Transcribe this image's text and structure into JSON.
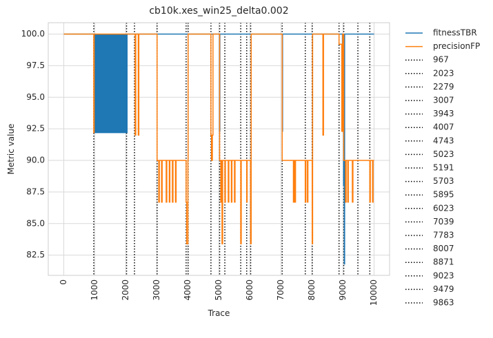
{
  "chart_data": {
    "type": "line",
    "title": "cb10k.xes_win25_delta0.002",
    "xlabel": "Trace",
    "ylabel": "Metric value",
    "xlim": [
      -500,
      10500
    ],
    "ylim": [
      80.9,
      100.9
    ],
    "xticks": [
      0,
      1000,
      2000,
      3000,
      4000,
      5000,
      6000,
      7000,
      8000,
      9000,
      10000
    ],
    "yticks": [
      82.5,
      85.0,
      87.5,
      90.0,
      92.5,
      95.0,
      97.5,
      100.0
    ],
    "grid": true,
    "legend_placement": "outside-right",
    "series": [
      {
        "name": "fitnessTBR",
        "color": "#1f77b4",
        "points": [
          [
            0,
            100
          ],
          [
            967,
            100
          ],
          [
            1000,
            100
          ],
          [
            1000,
            92.2
          ],
          [
            2040,
            92.2
          ],
          [
            2040,
            100
          ],
          [
            3000,
            100
          ],
          [
            3000,
            100
          ],
          [
            3000,
            100
          ],
          [
            4000,
            100
          ],
          [
            5000,
            100
          ],
          [
            5020,
            100
          ],
          [
            5020,
            92.3
          ],
          [
            5030,
            92.3
          ],
          [
            5030,
            100
          ],
          [
            6000,
            100
          ],
          [
            7039,
            100
          ],
          [
            7039,
            92.3
          ],
          [
            7050,
            92.3
          ],
          [
            7050,
            100
          ],
          [
            8000,
            100
          ],
          [
            8871,
            100
          ],
          [
            8871,
            100
          ],
          [
            8980,
            100
          ],
          [
            8980,
            92.3
          ],
          [
            9000,
            92.3
          ],
          [
            9000,
            99.2
          ],
          [
            9010,
            99.2
          ],
          [
            9010,
            92.3
          ],
          [
            9020,
            92.3
          ],
          [
            9020,
            88.0
          ],
          [
            9040,
            88.0
          ],
          [
            9040,
            81.8
          ],
          [
            9050,
            81.8
          ],
          [
            9050,
            100
          ],
          [
            10000,
            100
          ]
        ],
        "fill_block": {
          "x0": 1000,
          "x1": 2040,
          "y0": 92.2,
          "y1": 100
        }
      },
      {
        "name": "precisionFP",
        "color": "#ff7f0e",
        "points": [
          [
            0,
            100
          ],
          [
            967,
            100
          ],
          [
            967,
            92.2
          ],
          [
            980,
            92.2
          ],
          [
            980,
            100
          ],
          [
            2000,
            100
          ],
          [
            2000,
            100
          ],
          [
            2300,
            100
          ],
          [
            2300,
            92.0
          ],
          [
            2320,
            92.0
          ],
          [
            2320,
            100
          ],
          [
            2400,
            100
          ],
          [
            2400,
            92.0
          ],
          [
            2420,
            92.0
          ],
          [
            2420,
            100
          ],
          [
            3007,
            100
          ],
          [
            3007,
            90.0
          ],
          [
            3060,
            90.0
          ],
          [
            3060,
            86.7
          ],
          [
            3080,
            86.7
          ],
          [
            3080,
            90.0
          ],
          [
            3150,
            90.0
          ],
          [
            3150,
            86.7
          ],
          [
            3170,
            86.7
          ],
          [
            3170,
            90.0
          ],
          [
            3300,
            90.0
          ],
          [
            3300,
            86.7
          ],
          [
            3320,
            86.7
          ],
          [
            3320,
            90.0
          ],
          [
            3400,
            90.0
          ],
          [
            3400,
            86.7
          ],
          [
            3420,
            86.7
          ],
          [
            3420,
            90.0
          ],
          [
            3500,
            90.0
          ],
          [
            3500,
            86.7
          ],
          [
            3520,
            86.7
          ],
          [
            3520,
            90.0
          ],
          [
            3600,
            90.0
          ],
          [
            3600,
            86.7
          ],
          [
            3620,
            86.7
          ],
          [
            3620,
            90.0
          ],
          [
            3943,
            90.0
          ],
          [
            3943,
            86.7
          ],
          [
            3960,
            86.7
          ],
          [
            3960,
            83.4
          ],
          [
            4000,
            83.4
          ],
          [
            4000,
            90.0
          ],
          [
            4007,
            90.0
          ],
          [
            4007,
            100
          ],
          [
            4743,
            100
          ],
          [
            4743,
            92.0
          ],
          [
            4760,
            92.0
          ],
          [
            4760,
            90.0
          ],
          [
            4790,
            90.0
          ],
          [
            4790,
            92.0
          ],
          [
            4810,
            92.0
          ],
          [
            4810,
            100
          ],
          [
            5023,
            100
          ],
          [
            5023,
            90.0
          ],
          [
            5060,
            90.0
          ],
          [
            5060,
            86.7
          ],
          [
            5080,
            86.7
          ],
          [
            5080,
            90.0
          ],
          [
            5100,
            90.0
          ],
          [
            5100,
            83.4
          ],
          [
            5120,
            83.4
          ],
          [
            5120,
            90.0
          ],
          [
            5191,
            90.0
          ],
          [
            5191,
            86.7
          ],
          [
            5210,
            86.7
          ],
          [
            5210,
            90.0
          ],
          [
            5300,
            90.0
          ],
          [
            5300,
            86.7
          ],
          [
            5320,
            86.7
          ],
          [
            5320,
            90.0
          ],
          [
            5400,
            90.0
          ],
          [
            5400,
            86.7
          ],
          [
            5420,
            86.7
          ],
          [
            5420,
            90.0
          ],
          [
            5500,
            90.0
          ],
          [
            5500,
            86.7
          ],
          [
            5520,
            86.7
          ],
          [
            5520,
            90.0
          ],
          [
            5703,
            90.0
          ],
          [
            5703,
            83.4
          ],
          [
            5720,
            83.4
          ],
          [
            5720,
            90.0
          ],
          [
            5895,
            90.0
          ],
          [
            5895,
            86.7
          ],
          [
            5910,
            86.7
          ],
          [
            5910,
            90.0
          ],
          [
            6023,
            90.0
          ],
          [
            6023,
            83.4
          ],
          [
            6040,
            83.4
          ],
          [
            6040,
            100
          ],
          [
            7039,
            100
          ],
          [
            7039,
            90.0
          ],
          [
            7400,
            90.0
          ],
          [
            7400,
            86.7
          ],
          [
            7420,
            86.7
          ],
          [
            7420,
            90.0
          ],
          [
            7450,
            90.0
          ],
          [
            7450,
            86.7
          ],
          [
            7470,
            86.7
          ],
          [
            7470,
            90.0
          ],
          [
            7783,
            90.0
          ],
          [
            7783,
            86.7
          ],
          [
            7800,
            86.7
          ],
          [
            7800,
            90.0
          ],
          [
            7850,
            90.0
          ],
          [
            7850,
            86.7
          ],
          [
            7870,
            86.7
          ],
          [
            7870,
            90.0
          ],
          [
            8007,
            90.0
          ],
          [
            8007,
            83.4
          ],
          [
            8020,
            83.4
          ],
          [
            8020,
            100
          ],
          [
            8350,
            100
          ],
          [
            8350,
            92.0
          ],
          [
            8370,
            92.0
          ],
          [
            8370,
            100
          ],
          [
            8871,
            100
          ],
          [
            8871,
            99.2
          ],
          [
            8960,
            99.2
          ],
          [
            8960,
            92.3
          ],
          [
            8990,
            92.3
          ],
          [
            8990,
            100
          ],
          [
            9023,
            100
          ],
          [
            9023,
            90.0
          ],
          [
            9080,
            90.0
          ],
          [
            9080,
            86.7
          ],
          [
            9100,
            86.7
          ],
          [
            9100,
            90.0
          ],
          [
            9150,
            90.0
          ],
          [
            9150,
            86.7
          ],
          [
            9170,
            86.7
          ],
          [
            9170,
            90.0
          ],
          [
            9300,
            90.0
          ],
          [
            9300,
            86.7
          ],
          [
            9320,
            86.7
          ],
          [
            9320,
            90.0
          ],
          [
            9479,
            90.0
          ],
          [
            9479,
            90.0
          ],
          [
            9863,
            90.0
          ],
          [
            9863,
            86.7
          ],
          [
            9880,
            86.7
          ],
          [
            9880,
            90.0
          ],
          [
            9950,
            90.0
          ],
          [
            9950,
            86.7
          ],
          [
            9970,
            86.7
          ],
          [
            9970,
            90.0
          ],
          [
            10000,
            90.0
          ]
        ]
      }
    ],
    "vlines": [
      967,
      2023,
      2279,
      3007,
      3943,
      4007,
      4743,
      5023,
      5191,
      5703,
      5895,
      6023,
      7039,
      7783,
      8007,
      8871,
      9023,
      9479,
      9863
    ],
    "legend": {
      "series_entries": [
        "fitnessTBR",
        "precisionFP"
      ],
      "vline_entries": [
        "967",
        "2023",
        "2279",
        "3007",
        "3943",
        "4007",
        "4743",
        "5023",
        "5191",
        "5703",
        "5895",
        "6023",
        "7039",
        "7783",
        "8007",
        "8871",
        "9023",
        "9479",
        "9863"
      ]
    }
  }
}
